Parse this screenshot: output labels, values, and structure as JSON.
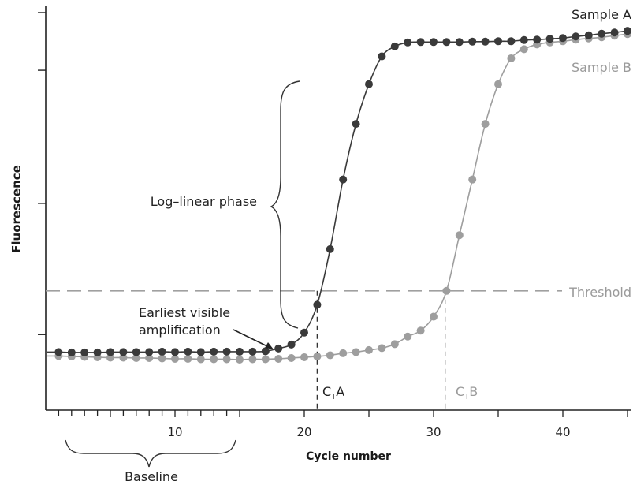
{
  "chart_data": {
    "type": "line",
    "title": "",
    "xlabel": "Cycle number",
    "ylabel": "Fluorescence",
    "xlim": [
      0,
      45
    ],
    "ylim": [
      0,
      100
    ],
    "x_ticks": [
      10,
      20,
      30,
      40
    ],
    "y_ticks_labeled": false,
    "grid": false,
    "legend": "none",
    "threshold": {
      "label": "Threshold",
      "value": 30
    },
    "series": [
      {
        "name": "Sample A",
        "color": "#3a3a3a",
        "x": [
          1,
          2,
          3,
          4,
          5,
          6,
          7,
          8,
          9,
          10,
          11,
          12,
          13,
          14,
          15,
          16,
          17,
          18,
          19,
          20,
          21,
          22,
          23,
          24,
          25,
          26,
          27,
          28,
          29,
          30,
          31,
          32,
          33,
          34,
          35,
          36,
          37,
          38,
          39,
          40,
          41,
          42,
          43,
          44,
          45
        ],
        "y": [
          14.6,
          14.5,
          14.5,
          14.5,
          14.6,
          14.6,
          14.6,
          14.6,
          14.7,
          14.6,
          14.7,
          14.6,
          14.7,
          14.7,
          14.7,
          14.7,
          14.8,
          15.5,
          16.5,
          19.5,
          26.5,
          40.5,
          58,
          72,
          82,
          89,
          91.5,
          92.5,
          92.6,
          92.6,
          92.6,
          92.6,
          92.7,
          92.7,
          92.8,
          92.8,
          93.1,
          93.2,
          93.4,
          93.6,
          94,
          94.3,
          94.7,
          95,
          95.4
        ]
      },
      {
        "name": "Sample B",
        "color": "#9e9e9e",
        "x": [
          1,
          2,
          3,
          4,
          5,
          6,
          7,
          8,
          9,
          10,
          11,
          12,
          13,
          14,
          15,
          16,
          17,
          18,
          19,
          20,
          21,
          22,
          23,
          24,
          25,
          26,
          27,
          28,
          29,
          30,
          31,
          32,
          33,
          34,
          35,
          36,
          37,
          38,
          39,
          40,
          41,
          42,
          43,
          44,
          45
        ],
        "y": [
          13.6,
          13.5,
          13.4,
          13.3,
          13.2,
          13.2,
          13.1,
          13.1,
          13,
          12.9,
          12.9,
          12.8,
          12.8,
          12.8,
          12.7,
          12.8,
          12.8,
          12.9,
          13.1,
          13.3,
          13.5,
          13.8,
          14.3,
          14.6,
          15.1,
          15.6,
          16.6,
          18.5,
          20,
          23.5,
          30,
          44,
          58,
          72,
          82,
          88.5,
          90.8,
          92,
          92.5,
          92.8,
          93.2,
          93.5,
          93.8,
          94.2,
          94.6
        ]
      }
    ],
    "annotations": {
      "loglinear": "Log–linear phase",
      "earliest_line1": "Earliest visible",
      "earliest_line2": "amplification",
      "baseline": "Baseline",
      "cta_prefix": "C",
      "cta_sub": "T",
      "cta_suffix": "A",
      "cta_x": 21,
      "ctb_prefix": "C",
      "ctb_sub": "T",
      "ctb_suffix": "B",
      "ctb_x": 30.9
    }
  }
}
